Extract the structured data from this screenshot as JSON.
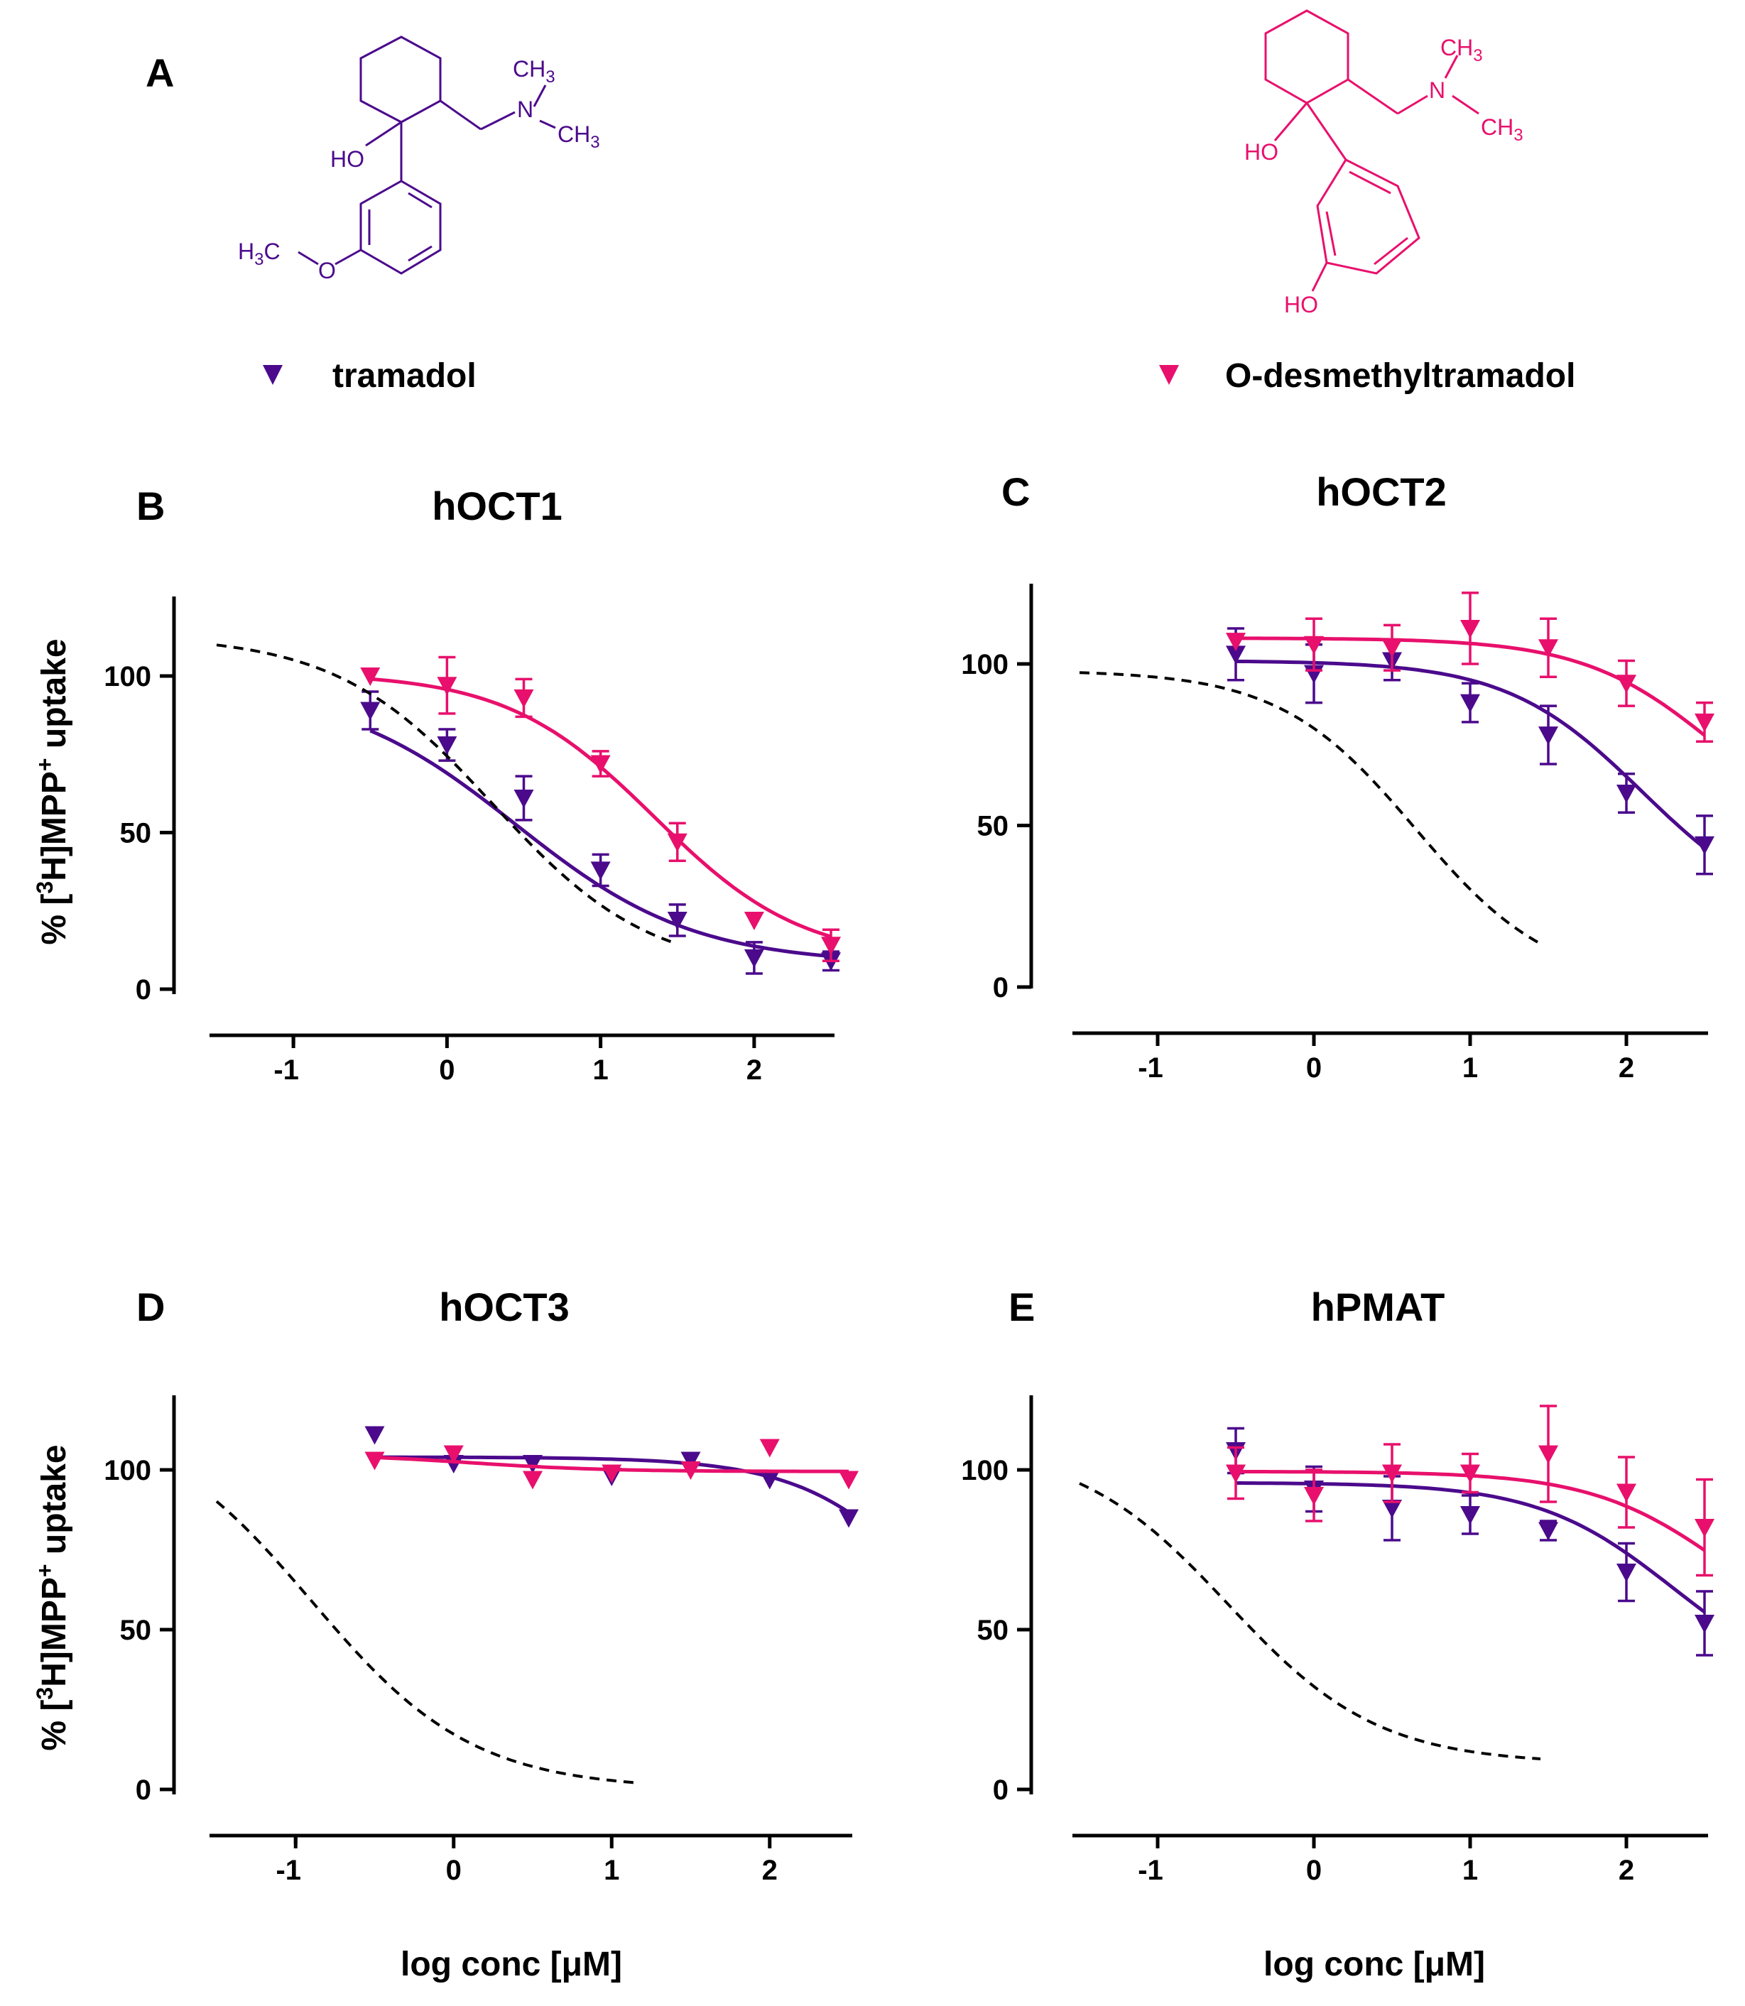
{
  "panel_A": {
    "letter": "A",
    "compounds": [
      {
        "name": "tramadol",
        "color": "#4B0A8C",
        "atoms": {
          "ch3_top": "CH",
          "ch3_top_sub": "3",
          "n": "N",
          "ch3_bottom": "CH",
          "ch3_bottom_sub": "3",
          "ho": "HO",
          "methoxy_h": "H",
          "methoxy_sub": "3",
          "methoxy_c": "C",
          "methoxy_o": "O"
        }
      },
      {
        "name": "O-desmethyltramadol",
        "color": "#E8106C",
        "atoms": {
          "ch3_top": "CH",
          "ch3_top_sub": "3",
          "n": "N",
          "ch3_bottom": "CH",
          "ch3_bottom_sub": "3",
          "ho": "HO",
          "phenol_ho": "HO"
        }
      }
    ]
  },
  "legend": [
    {
      "label": "tramadol",
      "color": "#4B0A8C",
      "marker": "down-triangle"
    },
    {
      "label": "O-desmethyltramadol",
      "color": "#E8106C",
      "marker": "down-triangle"
    }
  ],
  "colors": {
    "tramadol": "#4B0A8C",
    "odesmethyl": "#E8106C",
    "reference": "#000000"
  },
  "axis_labels": {
    "y_prefix": "% [",
    "y_sup1": "3",
    "y_mid": "H]MPP",
    "y_sup2": "+",
    "y_suffix": " uptake",
    "x": "log conc [μM]"
  },
  "chart_data": [
    {
      "letter": "B",
      "title": "hOCT1",
      "type": "line",
      "xlim": [
        -1.5,
        2.5
      ],
      "ylim": [
        0,
        125
      ],
      "xticks": [
        -1,
        0,
        1,
        2
      ],
      "yticks": [
        0,
        50,
        100
      ],
      "xlabel": "",
      "ylabel": "% [3H]MPP+ uptake",
      "series": [
        {
          "name": "tramadol",
          "color": "#4B0A8C",
          "x": [
            -0.5,
            0,
            0.5,
            1,
            1.5,
            2,
            2.5
          ],
          "y": [
            89,
            78,
            61,
            38,
            22,
            10,
            9
          ],
          "err": [
            6,
            5,
            7,
            5,
            5,
            5,
            3
          ],
          "fit": {
            "top": 97,
            "bottom": 8,
            "logIC50": 0.45,
            "hill": 0.75,
            "x_from": -0.5,
            "x_to": 2.5
          }
        },
        {
          "name": "O-desmethyltramadol",
          "color": "#E8106C",
          "x": [
            -0.5,
            0,
            0.5,
            1,
            1.5,
            2,
            2.5
          ],
          "y": [
            100,
            97,
            93,
            72,
            47,
            22,
            14
          ],
          "err": [
            0,
            9,
            6,
            4,
            6,
            0,
            5
          ],
          "fit": {
            "top": 101,
            "bottom": 9,
            "logIC50": 1.35,
            "hill": 0.9,
            "x_from": -0.5,
            "x_to": 2.5
          }
        },
        {
          "name": "reference",
          "color": "#000000",
          "dashed": true,
          "fit": {
            "top": 113,
            "bottom": 5,
            "logIC50": 0.3,
            "hill": 0.85,
            "x_from": -1.5,
            "x_to": 1.5
          }
        }
      ]
    },
    {
      "letter": "C",
      "title": "hOCT2",
      "type": "line",
      "xlim": [
        -1.5,
        2.5
      ],
      "ylim": [
        0,
        125
      ],
      "xticks": [
        -1,
        0,
        1,
        2
      ],
      "yticks": [
        0,
        50,
        100
      ],
      "xlabel": "",
      "ylabel": "",
      "series": [
        {
          "name": "tramadol",
          "color": "#4B0A8C",
          "x": [
            -0.5,
            0,
            0.5,
            1,
            1.5,
            2,
            2.5
          ],
          "y": [
            103,
            97,
            101,
            88,
            78,
            60,
            44
          ],
          "err": [
            8,
            9,
            6,
            6,
            9,
            6,
            9
          ],
          "fit": {
            "top": 101,
            "bottom": 20,
            "logIC50": 2.1,
            "hill": 1.0,
            "x_from": -0.5,
            "x_to": 2.5
          }
        },
        {
          "name": "O-desmethyltramadol",
          "color": "#E8106C",
          "x": [
            -0.5,
            0,
            0.5,
            1,
            1.5,
            2,
            2.5
          ],
          "y": [
            107,
            106,
            105,
            111,
            105,
            94,
            82
          ],
          "err": [
            0,
            8,
            7,
            11,
            9,
            7,
            6
          ],
          "fit": {
            "top": 108,
            "bottom": 40,
            "logIC50": 2.6,
            "hill": 1.0,
            "x_from": -0.5,
            "x_to": 2.5
          }
        },
        {
          "name": "reference",
          "color": "#000000",
          "dashed": true,
          "fit": {
            "top": 98,
            "bottom": 0,
            "logIC50": 0.65,
            "hill": 1.0,
            "x_from": -1.5,
            "x_to": 1.45
          }
        }
      ]
    },
    {
      "letter": "D",
      "title": "hOCT3",
      "type": "line",
      "xlim": [
        -1.5,
        2.5
      ],
      "ylim": [
        0,
        125
      ],
      "xticks": [
        -1,
        0,
        1,
        2
      ],
      "yticks": [
        0,
        50,
        100
      ],
      "xlabel": "log conc [μM]",
      "ylabel": "% [3H]MPP+ uptake",
      "series": [
        {
          "name": "tramadol",
          "color": "#4B0A8C",
          "x": [
            -0.5,
            0,
            0.5,
            1,
            1.5,
            2,
            2.5
          ],
          "y": [
            111,
            102,
            102,
            98,
            103,
            97,
            85
          ],
          "err": [
            0,
            0,
            0,
            0,
            0,
            0,
            0
          ],
          "fit": {
            "top": 104,
            "bottom": 0,
            "logIC50": 3.2,
            "hill": 1.0,
            "x_from": -0.5,
            "x_to": 2.5
          }
        },
        {
          "name": "O-desmethyltramadol",
          "color": "#E8106C",
          "x": [
            -0.5,
            0,
            0.5,
            1,
            1.5,
            2,
            2.5
          ],
          "y": [
            103,
            105,
            97,
            99,
            100,
            107,
            97
          ],
          "err": [
            0,
            0,
            0,
            0,
            0,
            0,
            0
          ],
          "fit": {
            "top": 105,
            "bottom": 99.5,
            "logIC50": 0.1,
            "hill": 1.0,
            "x_from": -0.5,
            "x_to": 2.5
          }
        },
        {
          "name": "reference",
          "color": "#000000",
          "dashed": true,
          "fit": {
            "top": 118,
            "bottom": 0,
            "logIC50": -0.9,
            "hill": 0.85,
            "x_from": -1.5,
            "x_to": 1.15
          }
        }
      ]
    },
    {
      "letter": "E",
      "title": "hPMAT",
      "type": "line",
      "xlim": [
        -1.5,
        2.5
      ],
      "ylim": [
        0,
        125
      ],
      "xticks": [
        -1,
        0,
        1,
        2
      ],
      "yticks": [
        0,
        50,
        100
      ],
      "xlabel": "log conc [μM]",
      "ylabel": "",
      "series": [
        {
          "name": "tramadol",
          "color": "#4B0A8C",
          "x": [
            -0.5,
            0,
            0.5,
            1,
            1.5,
            2,
            2.5
          ],
          "y": [
            106,
            94,
            88,
            86,
            81,
            68,
            52
          ],
          "err": [
            7,
            7,
            10,
            6,
            3,
            9,
            10
          ],
          "fit": {
            "top": 96,
            "bottom": 30,
            "logIC50": 2.3,
            "hill": 1.0,
            "x_from": -0.5,
            "x_to": 2.5
          }
        },
        {
          "name": "O-desmethyltramadol",
          "color": "#E8106C",
          "x": [
            -0.5,
            0,
            0.5,
            1,
            1.5,
            2,
            2.5
          ],
          "y": [
            99,
            92,
            99,
            99,
            105,
            93,
            82
          ],
          "err": [
            8,
            8,
            9,
            6,
            15,
            11,
            15
          ],
          "fit": {
            "top": 99.5,
            "bottom": 40,
            "logIC50": 2.65,
            "hill": 1.0,
            "x_from": -0.5,
            "x_to": 2.5
          }
        },
        {
          "name": "reference",
          "color": "#000000",
          "dashed": true,
          "fit": {
            "top": 108,
            "bottom": 8,
            "logIC50": -0.55,
            "hill": 0.9,
            "x_from": -1.5,
            "x_to": 1.45
          }
        }
      ]
    }
  ]
}
